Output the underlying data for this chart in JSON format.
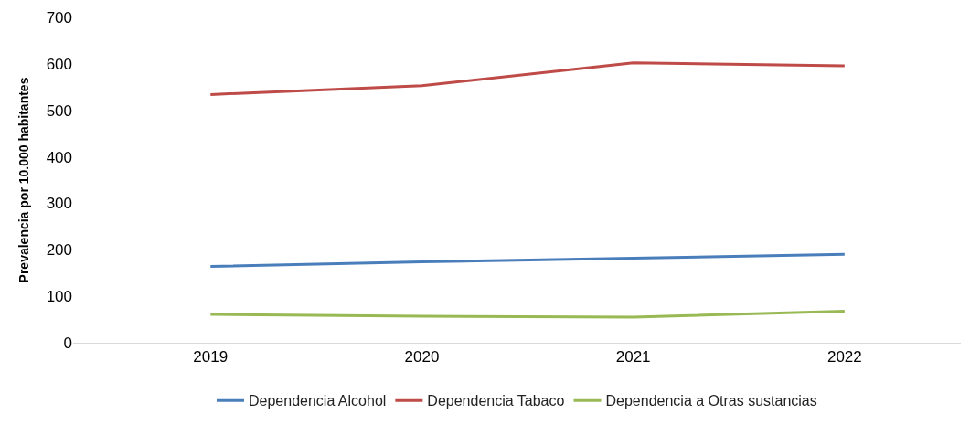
{
  "chart_data": {
    "type": "line",
    "ylabel": "Prevalencia por 10.000 habitantes",
    "categories": [
      "2019",
      "2020",
      "2021",
      "2022"
    ],
    "series": [
      {
        "name": "Dependencia Alcohol",
        "color": "#4a7ebb",
        "values": [
          164,
          174,
          182,
          190
        ]
      },
      {
        "name": "Dependencia Tabaco",
        "color": "#be4b48",
        "values": [
          534,
          553,
          602,
          596
        ]
      },
      {
        "name": "Dependencia a Otras sustancias",
        "color": "#98b954",
        "values": [
          61,
          57,
          55,
          68
        ]
      }
    ],
    "ylim": [
      0,
      700
    ],
    "yticks": [
      0,
      100,
      200,
      300,
      400,
      500,
      600,
      700
    ],
    "grid": false,
    "legend": "bottom",
    "marker": "none",
    "line_style": "solid"
  }
}
